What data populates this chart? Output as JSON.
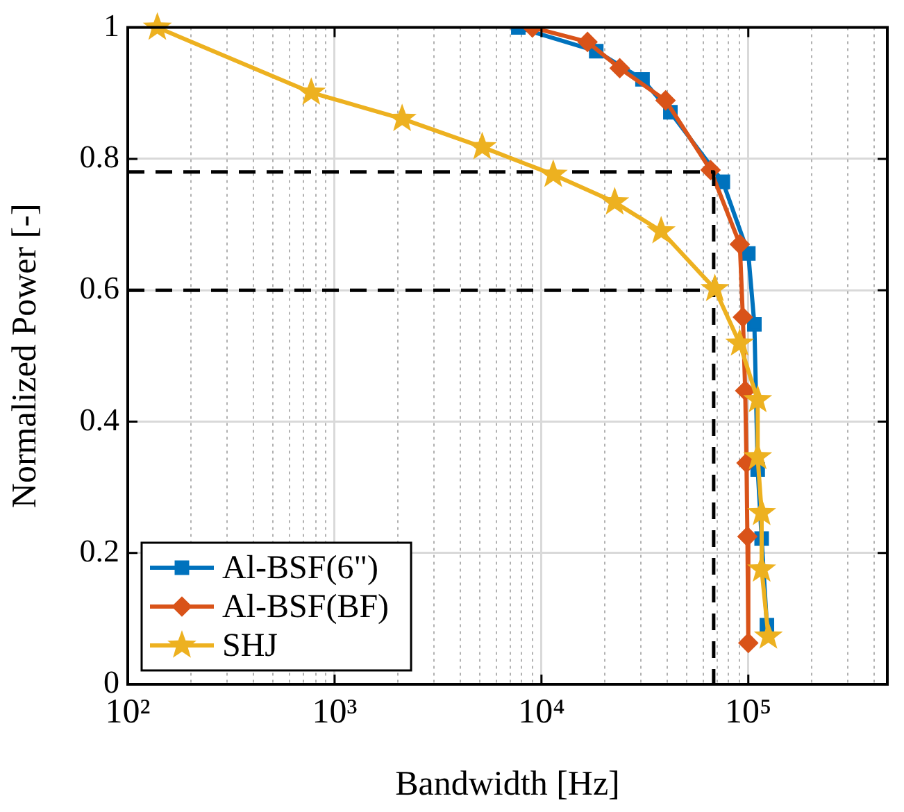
{
  "chart_data": {
    "type": "line",
    "xlabel": "Bandwidth [Hz]",
    "ylabel": "Normalized Power [-]",
    "log": "x",
    "xlim": [
      100,
      470000
    ],
    "ylim": [
      0,
      1
    ],
    "xticks": [
      {
        "value": 100,
        "label": "10²"
      },
      {
        "value": 1000,
        "label": "10³"
      },
      {
        "value": 10000,
        "label": "10⁴"
      },
      {
        "value": 100000,
        "label": "10⁵"
      }
    ],
    "yticks": [
      0,
      0.2,
      0.4,
      0.6,
      0.8,
      1
    ],
    "grid": true,
    "legend": "bottom left",
    "series": [
      {
        "name": "Al-BSF(6\")",
        "color": "#0072bd",
        "marker": "square",
        "x": [
          7730,
          18400,
          30800,
          42000,
          75300,
          100000,
          107000,
          111000,
          116000,
          123000
        ],
        "values": [
          1.0,
          0.964,
          0.921,
          0.871,
          0.765,
          0.656,
          0.548,
          0.327,
          0.222,
          0.09
        ]
      },
      {
        "name": "Al-BSF(BF)",
        "color": "#d95319",
        "marker": "diamond",
        "x": [
          9040,
          16700,
          23900,
          39800,
          65700,
          91000,
          94100,
          96600,
          98000,
          99000,
          100000
        ],
        "values": [
          1.0,
          0.978,
          0.938,
          0.889,
          0.783,
          0.67,
          0.559,
          0.447,
          0.337,
          0.225,
          0.063
        ]
      },
      {
        "name": "SHJ",
        "color": "#edb120",
        "marker": "star",
        "x": [
          139,
          771,
          2120,
          5170,
          11400,
          22600,
          37900,
          68900,
          90800,
          111000,
          111000,
          116000,
          116000,
          125000
        ],
        "values": [
          1.0,
          0.901,
          0.861,
          0.818,
          0.776,
          0.734,
          0.69,
          0.602,
          0.519,
          0.433,
          0.346,
          0.261,
          0.175,
          0.073
        ]
      },
      {
        "type": "line",
        "color": "#000000",
        "marker": "none",
        "line_style": "dashed",
        "x": [
          100,
          68000,
          68000
        ],
        "values": [
          0.78,
          0.78,
          0
        ]
      },
      {
        "type": "line",
        "color": "#000000",
        "marker": "none",
        "line_style": "dashed",
        "x": [
          100,
          68000
        ],
        "values": [
          0.6,
          0.6
        ]
      }
    ]
  }
}
